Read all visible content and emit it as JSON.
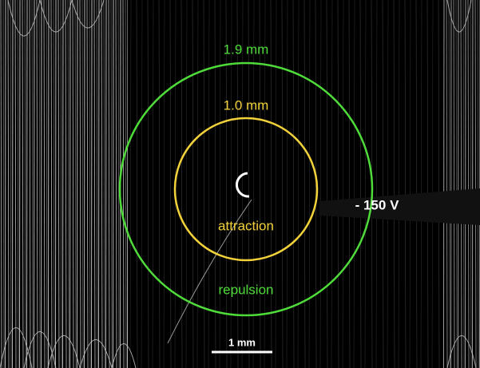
{
  "annotations": {
    "outer_radius": "1.9 mm",
    "inner_radius": "1.0 mm",
    "inner_zone": "attraction",
    "outer_zone": "repulsion",
    "voltage": "- 150 V",
    "scale_bar": "1 mm"
  }
}
